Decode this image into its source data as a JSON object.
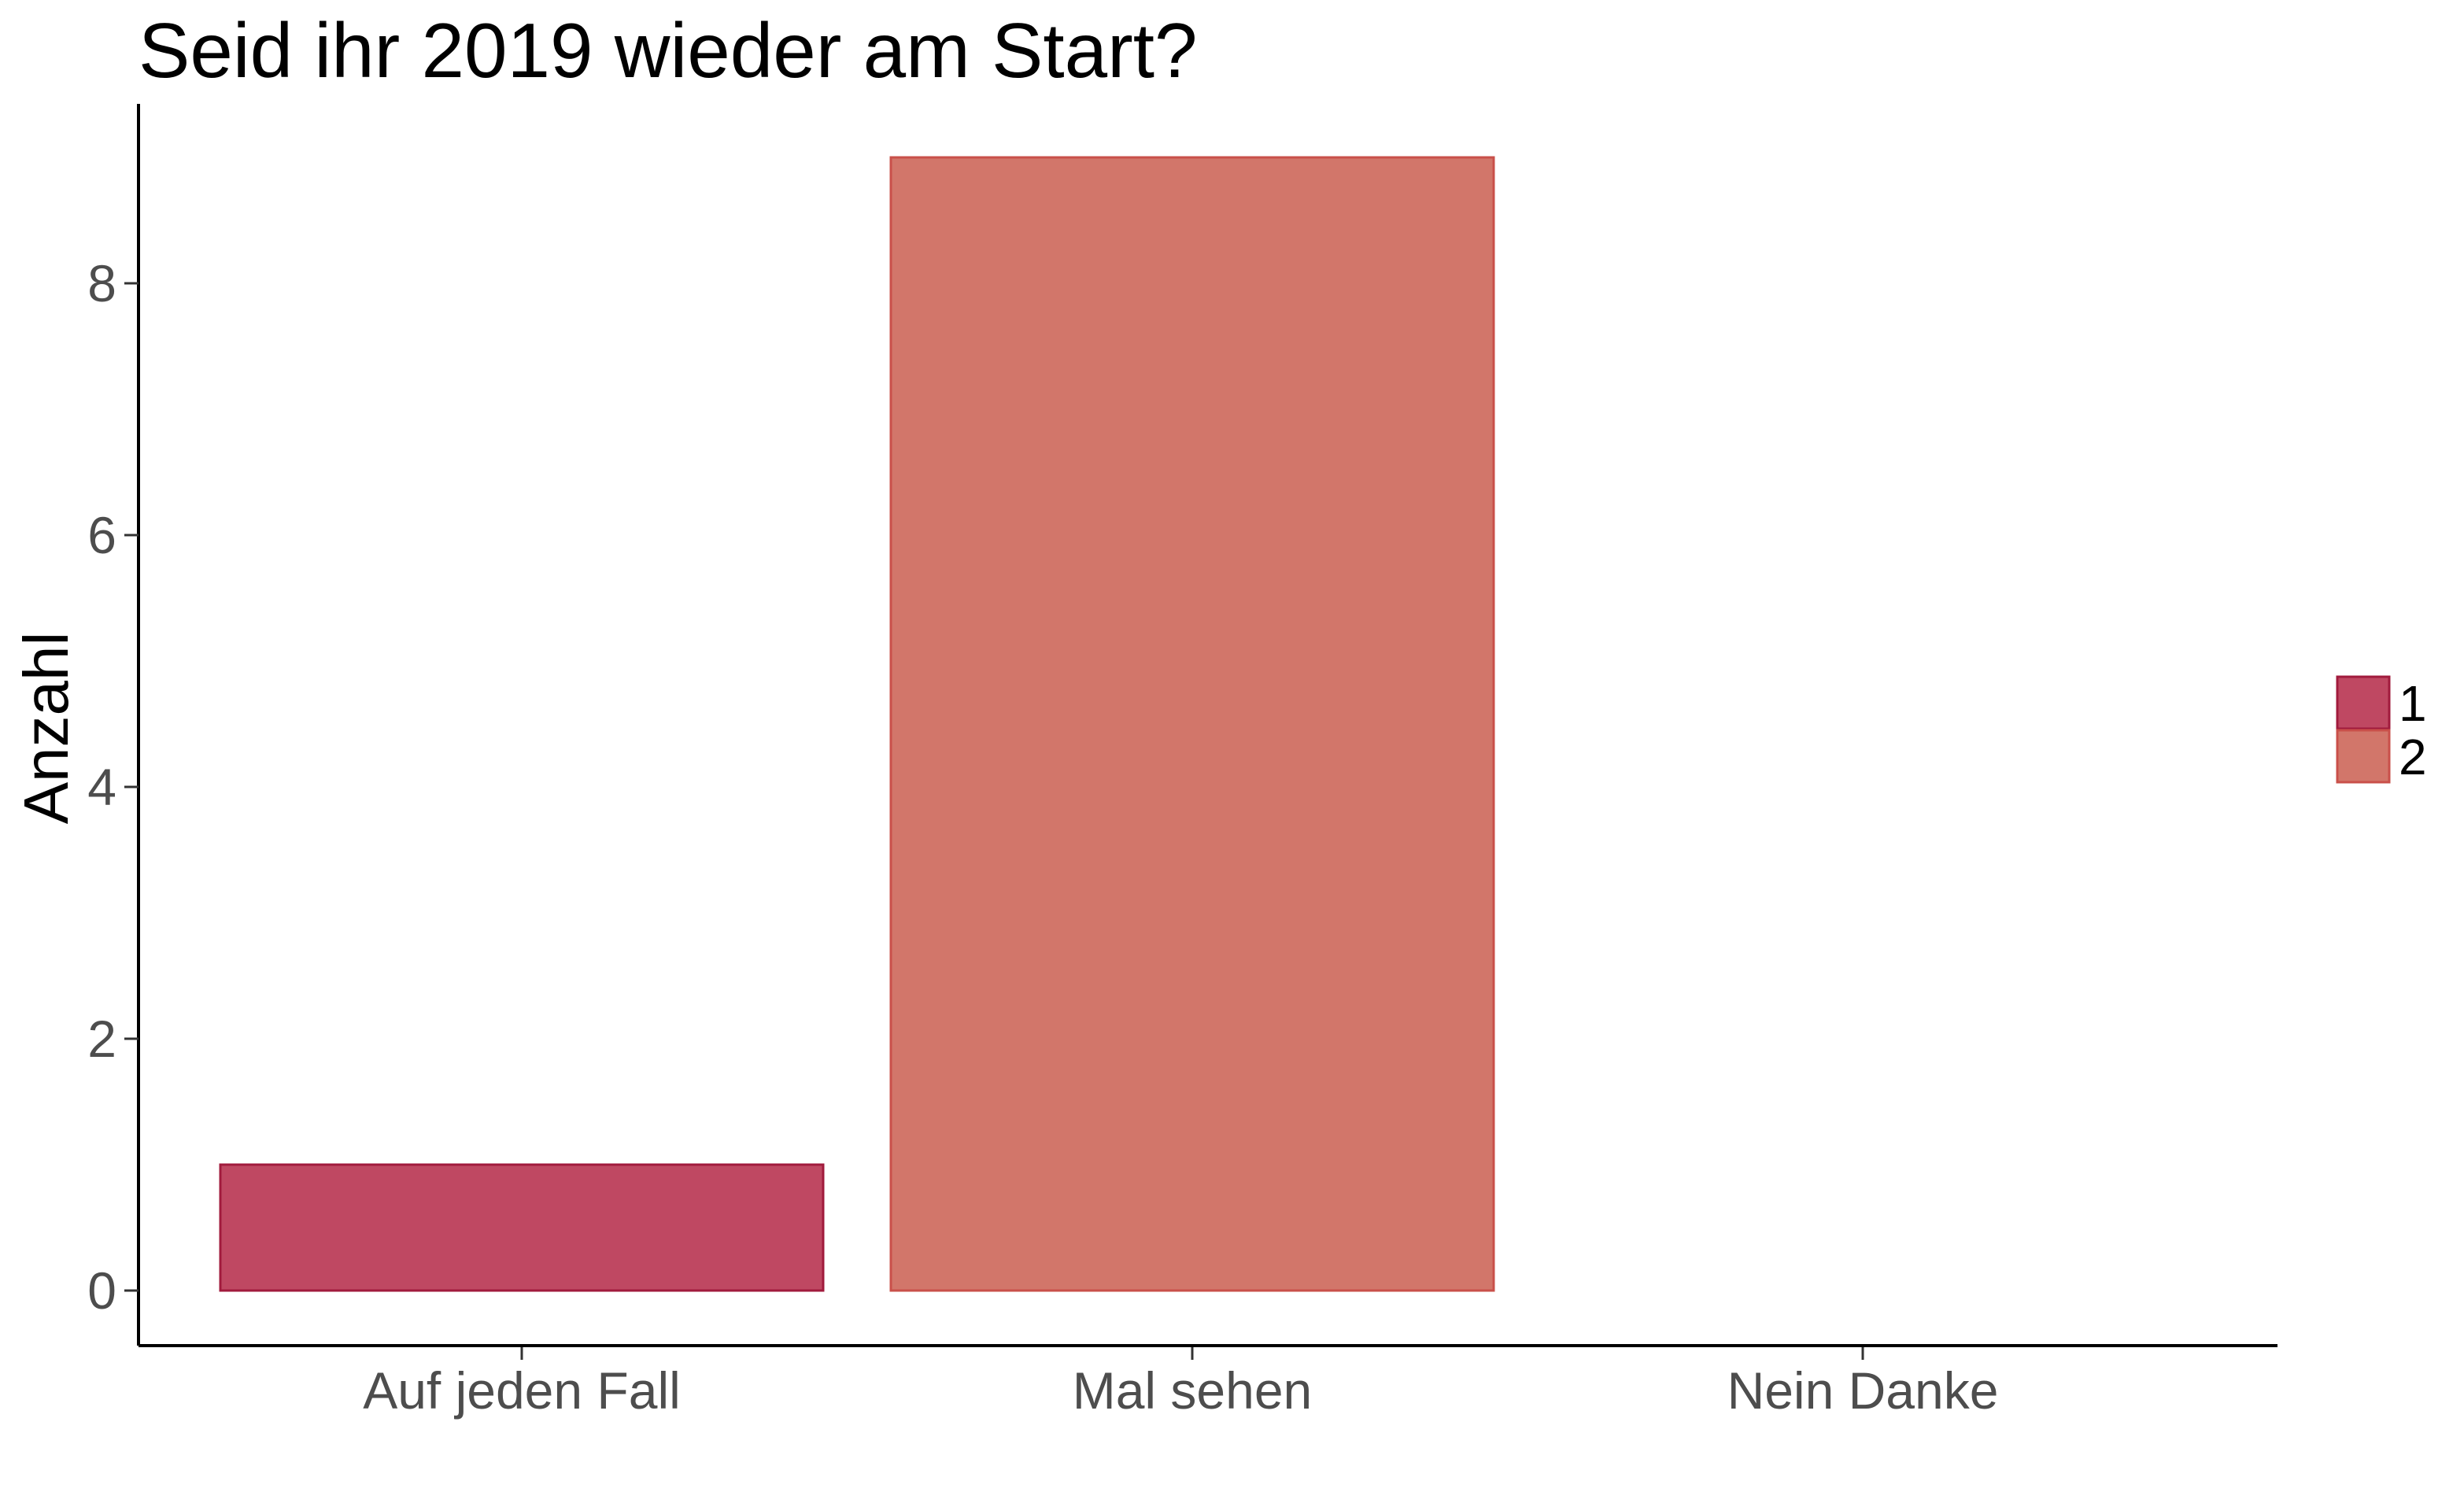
{
  "chart_data": {
    "type": "bar",
    "title": "Seid ihr 2019 wieder am Start?",
    "xlabel": "",
    "ylabel": "Anzahl",
    "categories": [
      "Auf jeden Fall",
      "Mal sehen",
      "Nein Danke"
    ],
    "values": [
      1,
      9,
      0
    ],
    "fill_group": [
      "1",
      "2",
      null
    ],
    "ylim": [
      0,
      9
    ],
    "yticks": [
      0,
      2,
      4,
      6,
      8
    ],
    "grid": false,
    "legend": {
      "position": "right",
      "entries": [
        {
          "label": "1",
          "color": "#bf4862",
          "border": "#a11b3d"
        },
        {
          "label": "2",
          "color": "#d2766a",
          "border": "#c9504a"
        }
      ]
    }
  }
}
